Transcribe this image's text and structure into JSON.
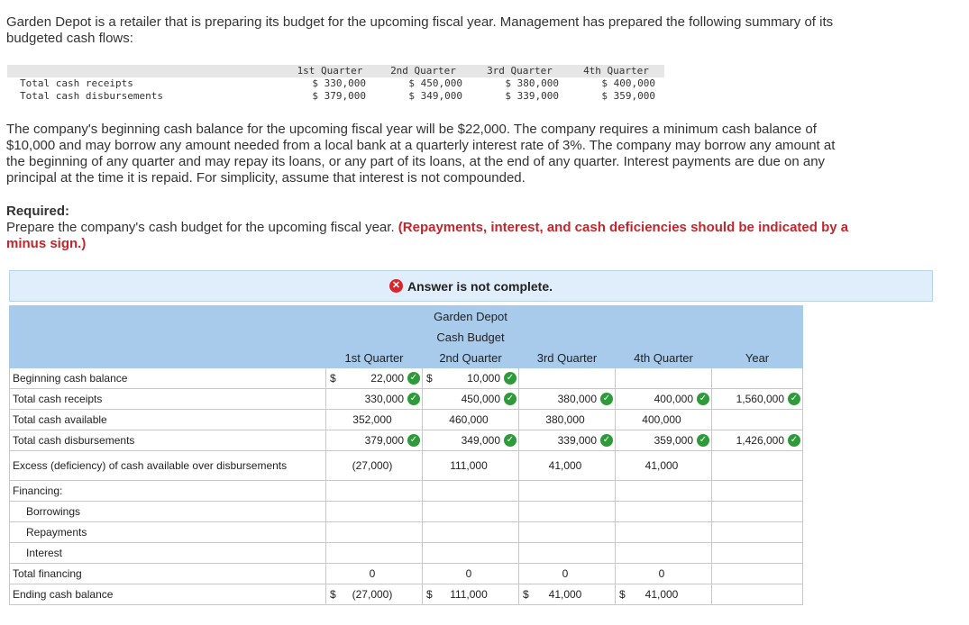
{
  "intro": "Garden Depot is a retailer that is preparing its budget for the upcoming fiscal year. Management has prepared the following summary of its budgeted cash flows:",
  "summary": {
    "headers": [
      "1st Quarter",
      "2nd Quarter",
      "3rd Quarter",
      "4th Quarter"
    ],
    "rows": [
      {
        "label": "Total cash receipts",
        "values": [
          "$ 330,000",
          "$ 450,000",
          "$ 380,000",
          "$ 400,000"
        ]
      },
      {
        "label": "Total cash disbursements",
        "values": [
          "$ 379,000",
          "$ 349,000",
          "$ 339,000",
          "$ 359,000"
        ]
      }
    ]
  },
  "paragraph2": "The company's beginning cash balance for the upcoming fiscal year will be $22,000. The company requires a minimum cash balance of $10,000 and may borrow any amount needed from a local bank at a quarterly interest rate of 3%. The company may borrow any amount at the beginning of any quarter and may repay its loans, or any part of its loans, at the end of any quarter. Interest payments are due on any principal at the time it is repaid. For simplicity, assume that interest is not compounded.",
  "required": {
    "heading": "Required:",
    "text": "Prepare the company's cash budget for the upcoming fiscal year. ",
    "note": "(Repayments, interest, and cash deficiencies should be indicated by a minus sign.)"
  },
  "banner": {
    "icon": "x-circle-icon",
    "text": "Answer is not complete."
  },
  "budget": {
    "company": "Garden Depot",
    "title": "Cash Budget",
    "columns": [
      "1st Quarter",
      "2nd Quarter",
      "3rd Quarter",
      "4th Quarter",
      "Year"
    ],
    "rows": {
      "beginning": {
        "label": "Beginning cash balance",
        "q1": "22,000",
        "q2": "10,000",
        "q3": "",
        "q4": "",
        "year": ""
      },
      "receipts": {
        "label": "Total cash receipts",
        "q1": "330,000",
        "q2": "450,000",
        "q3": "380,000",
        "q4": "400,000",
        "year": "1,560,000"
      },
      "available": {
        "label": "Total cash available",
        "q1": "352,000",
        "q2": "460,000",
        "q3": "380,000",
        "q4": "400,000",
        "year": ""
      },
      "disbursements": {
        "label": "Total cash disbursements",
        "q1": "379,000",
        "q2": "349,000",
        "q3": "339,000",
        "q4": "359,000",
        "year": "1,426,000"
      },
      "excess": {
        "label": "Excess (deficiency) of cash available over disbursements",
        "q1": "(27,000)",
        "q2": "111,000",
        "q3": "41,000",
        "q4": "41,000",
        "year": ""
      },
      "financing": {
        "label": "Financing:"
      },
      "borrowings": {
        "label": "Borrowings"
      },
      "repayments": {
        "label": "Repayments"
      },
      "interest": {
        "label": "Interest"
      },
      "total_financing": {
        "label": "Total financing",
        "q1": "0",
        "q2": "0",
        "q3": "0",
        "q4": "0"
      },
      "ending": {
        "label": "Ending cash balance",
        "q1": "(27,000)",
        "q2": "111,000",
        "q3": "41,000",
        "q4": "41,000"
      }
    },
    "dollar": "$",
    "check_icon": "check-circle-icon",
    "colors": {
      "header_bg": "#a9cbeb",
      "check": "#2d9b3a",
      "error": "#d9262c",
      "note_red": "#c0272d"
    }
  }
}
